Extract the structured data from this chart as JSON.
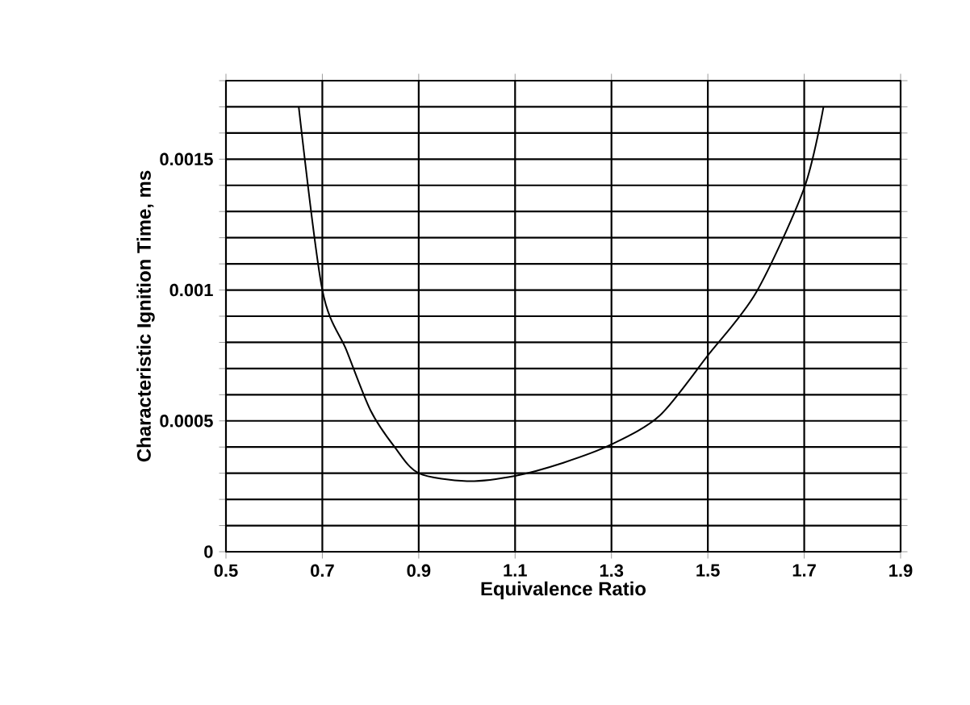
{
  "chart_data": {
    "type": "line",
    "xlabel": "Equivalence Ratio",
    "ylabel": "Characteristic Ignition Time, ms",
    "x": [
      0.651,
      0.7,
      0.75,
      0.8,
      0.85,
      0.9,
      1.0,
      1.1,
      1.2,
      1.3,
      1.4,
      1.5,
      1.6,
      1.7,
      1.74
    ],
    "values": [
      0.0017,
      0.001,
      0.00077,
      0.00054,
      0.0004,
      0.0003,
      0.00027,
      0.00029,
      0.00034,
      0.00041,
      0.00052,
      0.00075,
      0.00099,
      0.00139,
      0.0017
    ],
    "color": "#000000",
    "xlim": [
      0.5,
      1.9
    ],
    "xticks": [
      0.5,
      0.7,
      0.9,
      1.1,
      1.3,
      1.5,
      1.7,
      1.9
    ],
    "ylim": [
      0,
      0.0018
    ],
    "yticks": [
      0,
      {
        "value": 0.0001,
        "label": null
      },
      {
        "value": 0.0002,
        "label": null
      },
      {
        "value": 0.0003,
        "label": null
      },
      {
        "value": 0.0004,
        "label": null
      },
      0.0005,
      {
        "value": 0.0006,
        "label": null
      },
      {
        "value": 0.0007,
        "label": null
      },
      {
        "value": 0.0008,
        "label": null
      },
      {
        "value": 0.0009,
        "label": null
      },
      0.001,
      {
        "value": 0.0011,
        "label": null
      },
      {
        "value": 0.0012,
        "label": null
      },
      {
        "value": 0.0013,
        "label": null
      },
      {
        "value": 0.0014,
        "label": null
      },
      0.0015,
      {
        "value": 0.0016,
        "label": null
      },
      {
        "value": 0.0017,
        "label": null
      },
      {
        "value": 0.0018,
        "label": null
      }
    ],
    "grid": true,
    "marker": "none",
    "line_style": "solid"
  }
}
